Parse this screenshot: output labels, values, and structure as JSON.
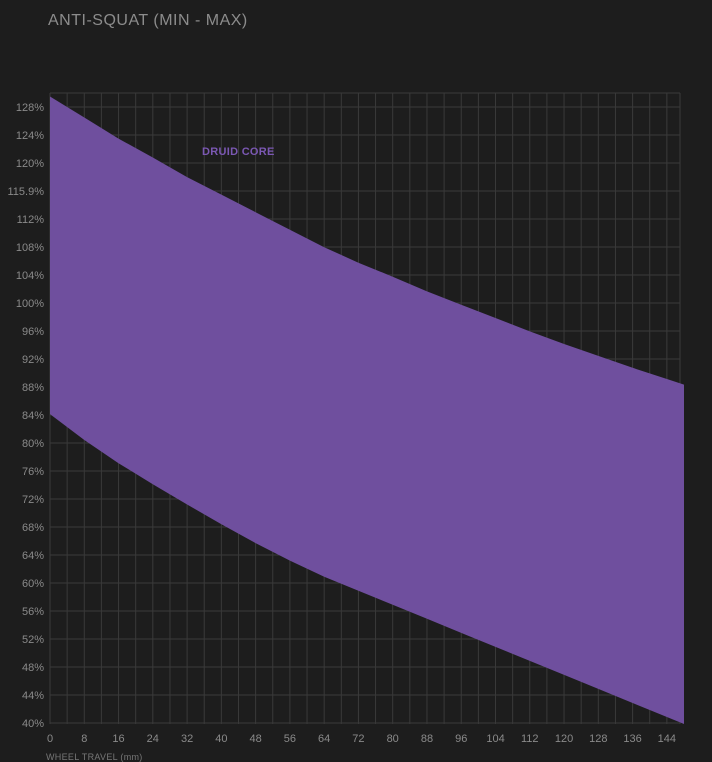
{
  "chart_data": {
    "type": "area",
    "title": "ANTI-SQUAT (MIN - MAX)",
    "xlabel": "WHEEL TRAVEL (mm)",
    "ylabel": "",
    "x_ticks": [
      0,
      8,
      16,
      24,
      32,
      40,
      48,
      56,
      64,
      72,
      80,
      88,
      96,
      104,
      112,
      120,
      128,
      136,
      144
    ],
    "y_ticks": [
      "128%",
      "124%",
      "120%",
      "115.9%",
      "112%",
      "108%",
      "104%",
      "100%",
      "96%",
      "92%",
      "88%",
      "84%",
      "80%",
      "76%",
      "72%",
      "68%",
      "64%",
      "60%",
      "56%",
      "52%",
      "48%",
      "44%",
      "40%"
    ],
    "xlim": [
      0,
      148
    ],
    "ylim": [
      40,
      130
    ],
    "grid": true,
    "series": [
      {
        "name": "DRUID CORE",
        "color": "#6f4f9e",
        "label_color": "#7b58b3",
        "x": [
          0,
          8,
          16,
          24,
          32,
          40,
          48,
          56,
          64,
          72,
          80,
          88,
          96,
          104,
          112,
          120,
          128,
          136,
          144,
          148
        ],
        "max": [
          129.5,
          126.5,
          123.5,
          120.8,
          118.0,
          115.5,
          113.0,
          110.5,
          108.0,
          105.8,
          103.8,
          101.7,
          99.8,
          97.9,
          96.0,
          94.2,
          92.5,
          90.8,
          89.2,
          88.4
        ],
        "min": [
          84.2,
          80.5,
          77.2,
          74.2,
          71.3,
          68.5,
          65.8,
          63.3,
          61.0,
          59.0,
          57.0,
          55.0,
          53.0,
          51.0,
          49.0,
          47.0,
          45.0,
          43.0,
          41.0,
          40.0
        ]
      }
    ]
  }
}
